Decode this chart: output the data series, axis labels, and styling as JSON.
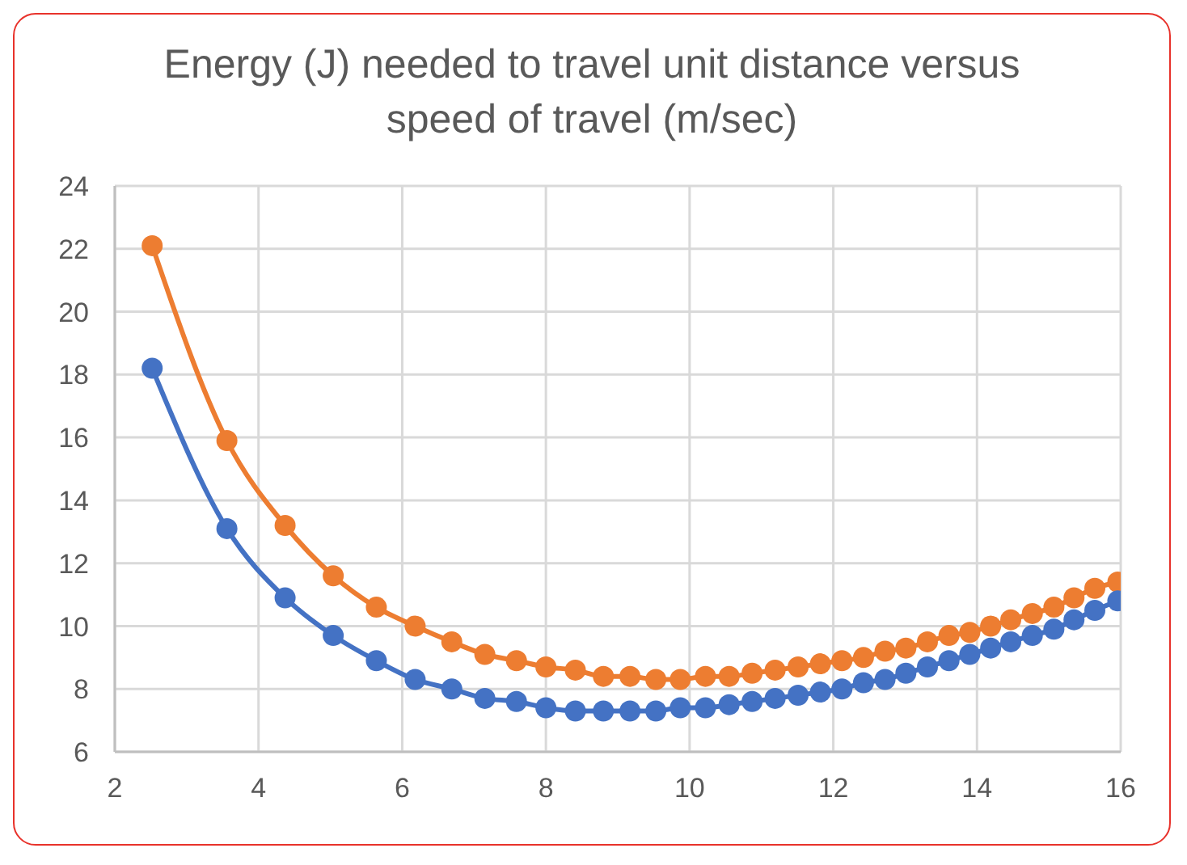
{
  "chart_data": {
    "type": "line",
    "title": "Energy (J) needed to travel unit distance versus speed of travel (m/sec)",
    "x": [
      2.52,
      3.56,
      4.37,
      5.04,
      5.64,
      6.18,
      6.69,
      7.15,
      7.59,
      8.0,
      8.41,
      8.8,
      9.17,
      9.53,
      9.87,
      10.22,
      10.55,
      10.87,
      11.19,
      11.51,
      11.82,
      12.12,
      12.42,
      12.72,
      13.01,
      13.31,
      13.61,
      13.9,
      14.19,
      14.47,
      14.77,
      15.07,
      15.35,
      15.64,
      15.96
    ],
    "series": [
      {
        "color": "#ed7d31",
        "values": [
          22.1,
          15.9,
          13.2,
          11.6,
          10.6,
          10.0,
          9.5,
          9.1,
          8.9,
          8.7,
          8.6,
          8.4,
          8.4,
          8.3,
          8.3,
          8.4,
          8.4,
          8.5,
          8.6,
          8.7,
          8.8,
          8.9,
          9.0,
          9.2,
          9.3,
          9.5,
          9.7,
          9.8,
          10.0,
          10.2,
          10.4,
          10.6,
          10.9,
          11.2,
          11.4
        ]
      },
      {
        "color": "#4472c4",
        "values": [
          18.2,
          13.1,
          10.9,
          9.7,
          8.9,
          8.3,
          8.0,
          7.7,
          7.6,
          7.4,
          7.3,
          7.3,
          7.3,
          7.3,
          7.4,
          7.4,
          7.5,
          7.6,
          7.7,
          7.8,
          7.9,
          8.0,
          8.2,
          8.3,
          8.5,
          8.7,
          8.9,
          9.1,
          9.3,
          9.5,
          9.7,
          9.9,
          10.2,
          10.5,
          10.8
        ]
      }
    ],
    "xlim": [
      2,
      16
    ],
    "xticks": [
      2,
      4,
      6,
      8,
      10,
      12,
      14,
      16
    ],
    "ylim": [
      6,
      24
    ],
    "yticks": [
      6,
      8,
      10,
      12,
      14,
      16,
      18,
      20,
      22,
      24
    ],
    "grid": true,
    "marker": "circle",
    "line_style": "solid",
    "legend": false
  }
}
